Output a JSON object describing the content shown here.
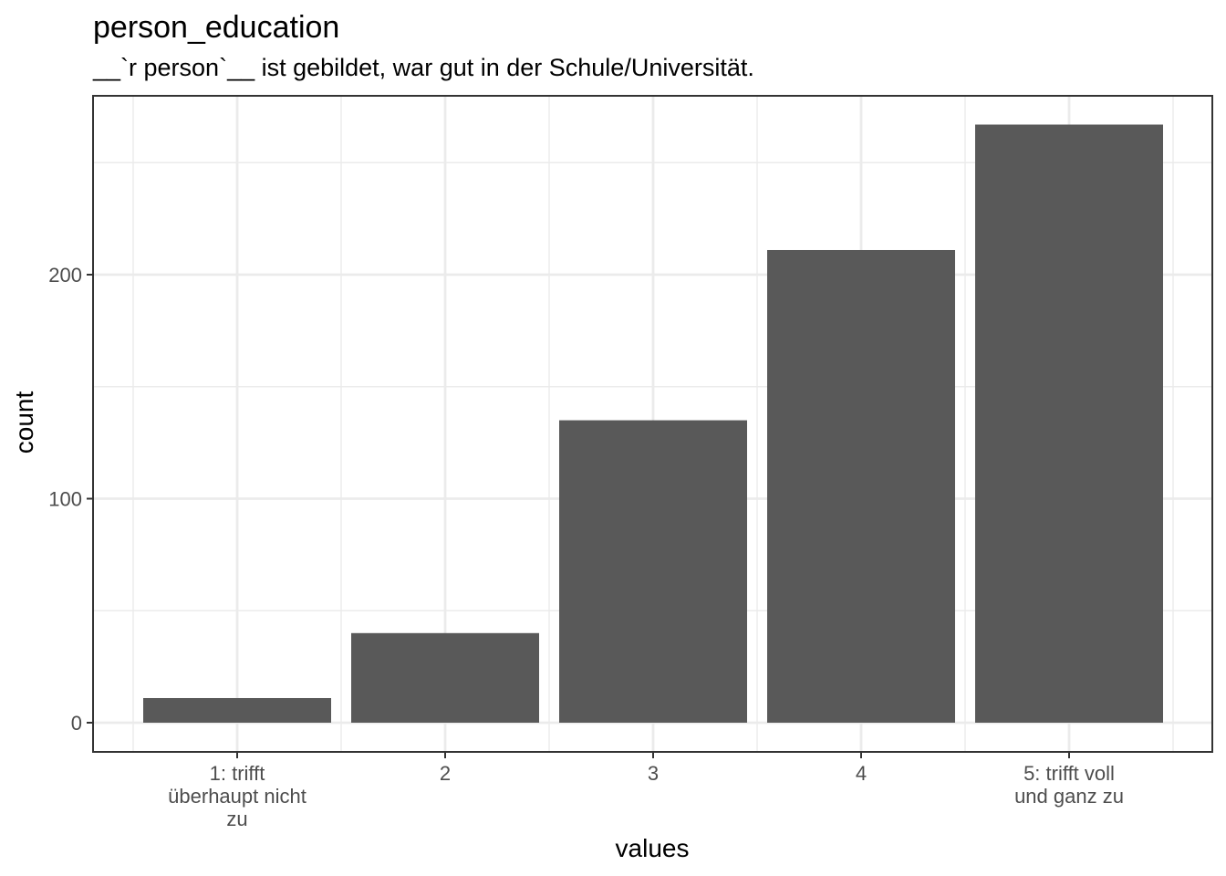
{
  "chart_data": {
    "type": "bar",
    "title": "person_education",
    "subtitle": "__`r person`__ ist gebildet, war gut in der Schule/Universität.",
    "xlabel": "values",
    "ylabel": "count",
    "categories": [
      [
        "1: trifft",
        "überhaupt nicht",
        "zu"
      ],
      [
        "2"
      ],
      [
        "3"
      ],
      [
        "4"
      ],
      [
        "5: trifft voll",
        "und ganz zu"
      ]
    ],
    "values": [
      11,
      40,
      135,
      211,
      267
    ],
    "ylim": [
      -13,
      280
    ],
    "yticks": [
      0,
      100,
      200
    ],
    "yminor": [
      50,
      150,
      250
    ],
    "grid": true,
    "bar_color": "#595959",
    "grid_color": "#ebebeb",
    "panel_border_color": "#333333"
  }
}
